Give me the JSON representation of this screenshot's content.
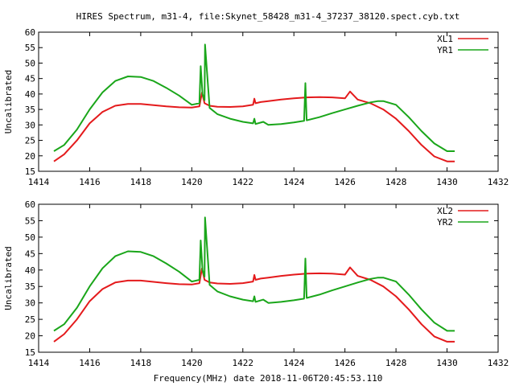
{
  "figure": {
    "title": "HIRES Spectrum, m31-4, file:Skynet_58428_m31-4_37237_38120.spect.cyb.txt",
    "xlabel": "Frequency(MHz) date 2018-11-06T20:45:53.110"
  },
  "chart_data": [
    {
      "type": "line",
      "ylabel": "Uncalibrated",
      "xlim": [
        1414,
        1432
      ],
      "ylim": [
        15,
        60
      ],
      "xticks": [
        1414,
        1416,
        1418,
        1420,
        1422,
        1424,
        1426,
        1428,
        1430,
        1432
      ],
      "yticks": [
        15,
        20,
        25,
        30,
        35,
        40,
        45,
        50,
        55,
        60
      ],
      "grid": false,
      "legend_position": "top-right",
      "series": [
        {
          "name": "XL1",
          "color": "#e41a1c",
          "x": [
            1414.6,
            1415.0,
            1415.5,
            1416.0,
            1416.5,
            1417.0,
            1417.5,
            1418.0,
            1418.5,
            1419.0,
            1419.5,
            1420.0,
            1420.3,
            1420.4,
            1420.5,
            1420.7,
            1421.0,
            1421.5,
            1422.0,
            1422.4,
            1422.45,
            1422.5,
            1422.7,
            1423.0,
            1423.5,
            1424.0,
            1424.5,
            1425.0,
            1425.5,
            1426.0,
            1426.2,
            1426.5,
            1427.0,
            1427.5,
            1428.0,
            1428.5,
            1429.0,
            1429.5,
            1430.0,
            1430.3
          ],
          "y": [
            18.2,
            20.5,
            25.0,
            30.5,
            34.2,
            36.2,
            36.8,
            36.8,
            36.4,
            36.0,
            35.7,
            35.6,
            36.0,
            40.5,
            37.0,
            36.2,
            35.9,
            35.8,
            36.0,
            36.5,
            38.5,
            37.0,
            37.4,
            37.7,
            38.2,
            38.6,
            38.9,
            39.0,
            38.9,
            38.6,
            40.8,
            38.2,
            37.0,
            35.0,
            32.0,
            28.0,
            23.5,
            19.8,
            18.2,
            18.2
          ]
        },
        {
          "name": "YR1",
          "color": "#1aa61a",
          "x": [
            1414.6,
            1415.0,
            1415.5,
            1416.0,
            1416.5,
            1417.0,
            1417.5,
            1418.0,
            1418.5,
            1419.0,
            1419.5,
            1420.0,
            1420.3,
            1420.35,
            1420.42,
            1420.5,
            1420.52,
            1420.7,
            1421.0,
            1421.5,
            1422.0,
            1422.4,
            1422.45,
            1422.5,
            1422.8,
            1422.9,
            1423.0,
            1423.5,
            1424.0,
            1424.4,
            1424.45,
            1424.5,
            1425.0,
            1425.5,
            1426.0,
            1426.5,
            1427.0,
            1427.3,
            1427.5,
            1428.0,
            1428.5,
            1429.0,
            1429.5,
            1430.0,
            1430.3
          ],
          "y": [
            21.5,
            23.5,
            28.5,
            35.0,
            40.5,
            44.2,
            45.7,
            45.5,
            44.2,
            42.0,
            39.5,
            36.5,
            37.0,
            49.0,
            40.0,
            38.0,
            56.0,
            35.5,
            33.5,
            32.0,
            31.0,
            30.5,
            32.0,
            30.3,
            31.0,
            30.5,
            30.0,
            30.3,
            30.8,
            31.3,
            43.5,
            31.5,
            32.5,
            33.8,
            35.0,
            36.2,
            37.3,
            37.7,
            37.7,
            36.5,
            32.5,
            28.0,
            24.0,
            21.5,
            21.5
          ]
        }
      ]
    },
    {
      "type": "line",
      "ylabel": "Uncalibrated",
      "xlim": [
        1414,
        1432
      ],
      "ylim": [
        15,
        60
      ],
      "xticks": [
        1414,
        1416,
        1418,
        1420,
        1422,
        1424,
        1426,
        1428,
        1430,
        1432
      ],
      "yticks": [
        15,
        20,
        25,
        30,
        35,
        40,
        45,
        50,
        55,
        60
      ],
      "grid": false,
      "legend_position": "top-right",
      "series": [
        {
          "name": "XL2",
          "color": "#e41a1c",
          "x": [
            1414.6,
            1415.0,
            1415.5,
            1416.0,
            1416.5,
            1417.0,
            1417.5,
            1418.0,
            1418.5,
            1419.0,
            1419.5,
            1420.0,
            1420.3,
            1420.4,
            1420.5,
            1420.7,
            1421.0,
            1421.5,
            1422.0,
            1422.4,
            1422.45,
            1422.5,
            1422.7,
            1423.0,
            1423.5,
            1424.0,
            1424.5,
            1425.0,
            1425.5,
            1426.0,
            1426.2,
            1426.5,
            1427.0,
            1427.5,
            1428.0,
            1428.5,
            1429.0,
            1429.5,
            1430.0,
            1430.3
          ],
          "y": [
            18.2,
            20.5,
            25.0,
            30.5,
            34.2,
            36.2,
            36.8,
            36.8,
            36.4,
            36.0,
            35.7,
            35.6,
            36.0,
            40.5,
            37.0,
            36.2,
            35.9,
            35.8,
            36.0,
            36.5,
            38.5,
            37.0,
            37.4,
            37.7,
            38.2,
            38.6,
            38.9,
            39.0,
            38.9,
            38.6,
            40.8,
            38.2,
            37.0,
            35.0,
            32.0,
            28.0,
            23.5,
            19.8,
            18.2,
            18.2
          ]
        },
        {
          "name": "YR2",
          "color": "#1aa61a",
          "x": [
            1414.6,
            1415.0,
            1415.5,
            1416.0,
            1416.5,
            1417.0,
            1417.5,
            1418.0,
            1418.5,
            1419.0,
            1419.5,
            1420.0,
            1420.3,
            1420.35,
            1420.42,
            1420.5,
            1420.52,
            1420.7,
            1421.0,
            1421.5,
            1422.0,
            1422.4,
            1422.45,
            1422.5,
            1422.8,
            1422.9,
            1423.0,
            1423.5,
            1424.0,
            1424.4,
            1424.45,
            1424.5,
            1425.0,
            1425.5,
            1426.0,
            1426.5,
            1427.0,
            1427.3,
            1427.5,
            1428.0,
            1428.5,
            1429.0,
            1429.5,
            1430.0,
            1430.3
          ],
          "y": [
            21.5,
            23.5,
            28.5,
            35.0,
            40.5,
            44.2,
            45.7,
            45.5,
            44.2,
            42.0,
            39.5,
            36.5,
            37.0,
            49.0,
            40.0,
            38.0,
            56.0,
            35.5,
            33.5,
            32.0,
            31.0,
            30.5,
            32.0,
            30.3,
            31.0,
            30.5,
            30.0,
            30.3,
            30.8,
            31.3,
            43.5,
            31.5,
            32.5,
            33.8,
            35.0,
            36.2,
            37.3,
            37.7,
            37.7,
            36.5,
            32.5,
            28.0,
            24.0,
            21.5,
            21.5
          ]
        }
      ]
    }
  ]
}
